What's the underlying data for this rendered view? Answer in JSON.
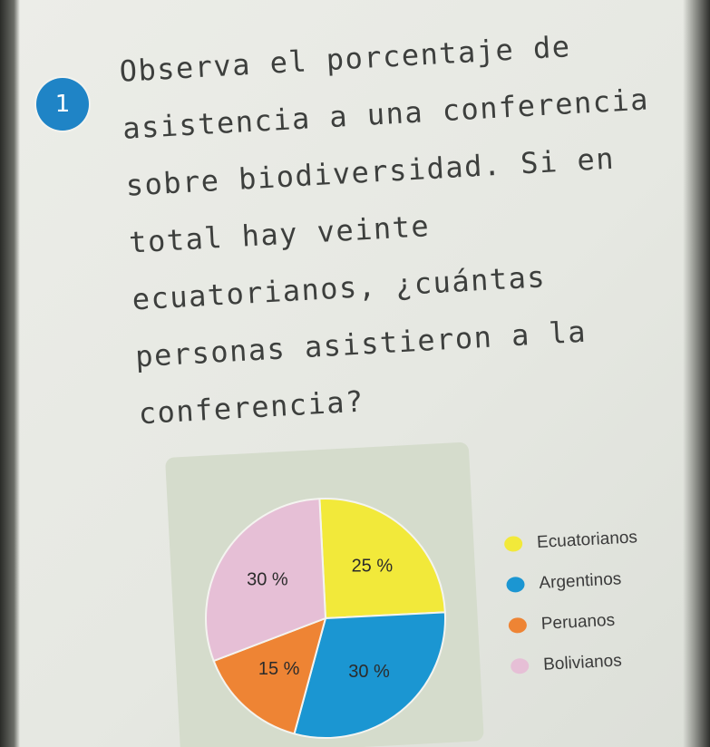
{
  "exercise": {
    "number": "1",
    "question_lines": [
      "Observa el porcentaje de",
      "asistencia a una conferencia",
      "sobre biodiversidad. Si en",
      "total hay veinte",
      "ecuatorianos, ¿cuántas",
      "personas asistieron a la",
      "conferencia?"
    ]
  },
  "colors": {
    "badge": "#1f84c6",
    "panel": "#d5dccc"
  },
  "chart_data": {
    "type": "pie",
    "title": "",
    "slices": [
      {
        "label": "Ecuatorianos",
        "value": 25,
        "value_label": "25 %",
        "color": "#f2e93a"
      },
      {
        "label": "Argentinos",
        "value": 30,
        "value_label": "30 %",
        "color": "#1b96d2"
      },
      {
        "label": "Peruanos",
        "value": 15,
        "value_label": "15 %",
        "color": "#ee8434"
      },
      {
        "label": "Bolivianos",
        "value": 30,
        "value_label": "30 %",
        "color": "#e6bfd6"
      }
    ],
    "legend_placement": "right"
  }
}
